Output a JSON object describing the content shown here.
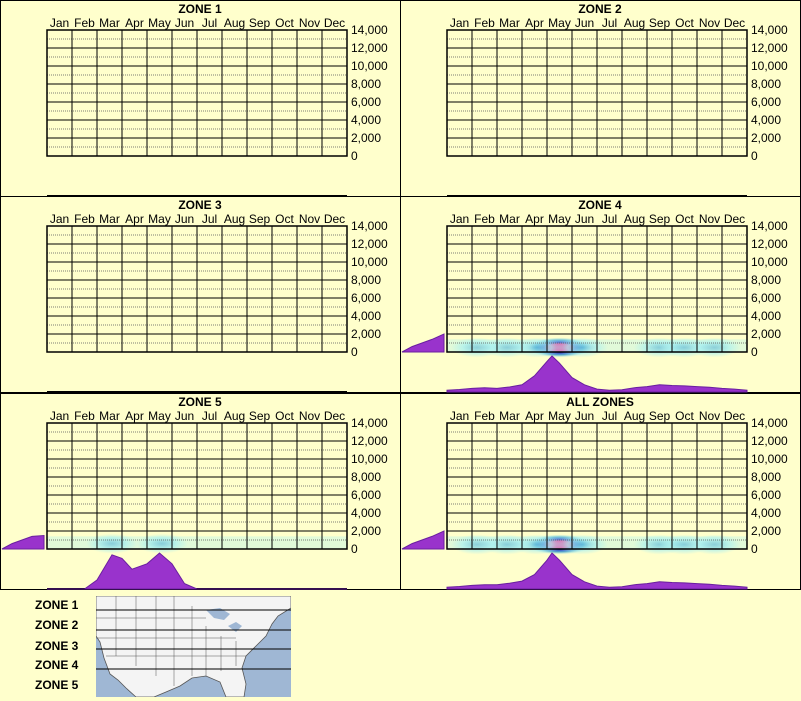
{
  "colors": {
    "background": "#ffffcc",
    "frame": "#000000",
    "grid_major": "#000000",
    "grid_minor": "#555555",
    "histogram_fill": "#9933cc",
    "histogram_stroke": "#6a1fa0",
    "heat_low": "#aaf0f0",
    "heat_mid": "#3399cc",
    "heat_high": "#3333cc",
    "heat_peak": "#ff1a8c",
    "map_water": "#9fb7d4",
    "map_land": "#f4f4f4",
    "map_border": "#555555"
  },
  "chart_data": [
    {
      "type": "heatmap",
      "title": "ZONE 1",
      "months": [
        "Jan",
        "Feb",
        "Mar",
        "Apr",
        "May",
        "Jun",
        "Jul",
        "Aug",
        "Sep",
        "Oct",
        "Nov",
        "Dec"
      ],
      "yticks": [
        "14,000",
        "12,000",
        "10,000",
        "8,000",
        "6,000",
        "4,000",
        "2,000",
        "0"
      ],
      "ylim": [
        0,
        14000
      ],
      "grid": true,
      "hotspots": [],
      "monthly_profile": null,
      "elevation_profile": null
    },
    {
      "type": "heatmap",
      "title": "ZONE 2",
      "months": [
        "Jan",
        "Feb",
        "Mar",
        "Apr",
        "May",
        "Jun",
        "Jul",
        "Aug",
        "Sep",
        "Oct",
        "Nov",
        "Dec"
      ],
      "yticks": [
        "14,000",
        "12,000",
        "10,000",
        "8,000",
        "6,000",
        "4,000",
        "2,000",
        "0"
      ],
      "ylim": [
        0,
        14000
      ],
      "grid": true,
      "hotspots": [],
      "monthly_profile": null,
      "elevation_profile": null
    },
    {
      "type": "heatmap",
      "title": "ZONE 3",
      "months": [
        "Jan",
        "Feb",
        "Mar",
        "Apr",
        "May",
        "Jun",
        "Jul",
        "Aug",
        "Sep",
        "Oct",
        "Nov",
        "Dec"
      ],
      "yticks": [
        "14,000",
        "12,000",
        "10,000",
        "8,000",
        "6,000",
        "4,000",
        "2,000",
        "0"
      ],
      "ylim": [
        0,
        14000
      ],
      "grid": true,
      "hotspots": [],
      "monthly_profile": null,
      "elevation_profile": null
    },
    {
      "type": "heatmap",
      "title": "ZONE 4",
      "months": [
        "Jan",
        "Feb",
        "Mar",
        "Apr",
        "May",
        "Jun",
        "Jul",
        "Aug",
        "Sep",
        "Oct",
        "Nov",
        "Dec"
      ],
      "yticks": [
        "14,000",
        "12,000",
        "10,000",
        "8,000",
        "6,000",
        "4,000",
        "2,000",
        "0"
      ],
      "ylim": [
        0,
        14000
      ],
      "grid": true,
      "hotspots": [
        {
          "month": 4.5,
          "elevation": 500,
          "intensity": 1.0
        },
        {
          "month": 3.6,
          "elevation": 500,
          "intensity": 0.45
        },
        {
          "month": 5.4,
          "elevation": 500,
          "intensity": 0.45
        },
        {
          "month": 2.4,
          "elevation": 500,
          "intensity": 0.25
        },
        {
          "month": 1.2,
          "elevation": 500,
          "intensity": 0.2
        },
        {
          "month": 8.5,
          "elevation": 500,
          "intensity": 0.3
        },
        {
          "month": 9.5,
          "elevation": 500,
          "intensity": 0.3
        },
        {
          "month": 10.7,
          "elevation": 500,
          "intensity": 0.22
        }
      ],
      "monthly_profile": [
        [
          0.0,
          0.05
        ],
        [
          0.5,
          0.07
        ],
        [
          1.0,
          0.1
        ],
        [
          1.5,
          0.12
        ],
        [
          2.0,
          0.1
        ],
        [
          2.5,
          0.14
        ],
        [
          3.0,
          0.2
        ],
        [
          3.5,
          0.45
        ],
        [
          4.0,
          0.85
        ],
        [
          4.2,
          1.0
        ],
        [
          4.5,
          0.8
        ],
        [
          5.0,
          0.4
        ],
        [
          5.5,
          0.2
        ],
        [
          6.0,
          0.08
        ],
        [
          6.5,
          0.05
        ],
        [
          7.0,
          0.06
        ],
        [
          7.5,
          0.12
        ],
        [
          8.0,
          0.15
        ],
        [
          8.5,
          0.2
        ],
        [
          9.0,
          0.18
        ],
        [
          9.5,
          0.17
        ],
        [
          10.0,
          0.15
        ],
        [
          10.5,
          0.13
        ],
        [
          11.0,
          0.1
        ],
        [
          11.5,
          0.08
        ],
        [
          12.0,
          0.05
        ]
      ],
      "elevation_profile": [
        [
          0,
          1.0
        ],
        [
          2000,
          0.3
        ],
        [
          2500,
          0.0
        ]
      ]
    },
    {
      "type": "heatmap",
      "title": "ZONE 5",
      "months": [
        "Jan",
        "Feb",
        "Mar",
        "Apr",
        "May",
        "Jun",
        "Jul",
        "Aug",
        "Sep",
        "Oct",
        "Nov",
        "Dec"
      ],
      "yticks": [
        "14,000",
        "12,000",
        "10,000",
        "8,000",
        "6,000",
        "4,000",
        "2,000",
        "0"
      ],
      "ylim": [
        0,
        14000
      ],
      "grid": true,
      "hotspots": [
        {
          "month": 2.6,
          "elevation": 600,
          "intensity": 0.28
        },
        {
          "month": 4.6,
          "elevation": 600,
          "intensity": 0.3
        }
      ],
      "monthly_profile": [
        [
          0.0,
          0.0
        ],
        [
          1.5,
          0.0
        ],
        [
          2.0,
          0.25
        ],
        [
          2.6,
          0.95
        ],
        [
          3.0,
          0.85
        ],
        [
          3.4,
          0.55
        ],
        [
          4.0,
          0.7
        ],
        [
          4.5,
          1.0
        ],
        [
          5.0,
          0.7
        ],
        [
          5.5,
          0.15
        ],
        [
          6.0,
          0.0
        ],
        [
          12.0,
          0.0
        ]
      ],
      "elevation_profile": [
        [
          0,
          1.0
        ],
        [
          1500,
          0.7
        ],
        [
          2500,
          0.35
        ],
        [
          3000,
          0.0
        ]
      ]
    },
    {
      "type": "heatmap",
      "title": "ALL ZONES",
      "months": [
        "Jan",
        "Feb",
        "Mar",
        "Apr",
        "May",
        "Jun",
        "Jul",
        "Aug",
        "Sep",
        "Oct",
        "Nov",
        "Dec"
      ],
      "yticks": [
        "14,000",
        "12,000",
        "10,000",
        "8,000",
        "6,000",
        "4,000",
        "2,000",
        "0"
      ],
      "ylim": [
        0,
        14000
      ],
      "grid": true,
      "hotspots": [
        {
          "month": 4.5,
          "elevation": 500,
          "intensity": 1.0
        },
        {
          "month": 3.6,
          "elevation": 500,
          "intensity": 0.45
        },
        {
          "month": 5.4,
          "elevation": 500,
          "intensity": 0.45
        },
        {
          "month": 2.4,
          "elevation": 500,
          "intensity": 0.3
        },
        {
          "month": 1.2,
          "elevation": 500,
          "intensity": 0.22
        },
        {
          "month": 8.5,
          "elevation": 500,
          "intensity": 0.3
        },
        {
          "month": 9.5,
          "elevation": 500,
          "intensity": 0.3
        },
        {
          "month": 10.7,
          "elevation": 500,
          "intensity": 0.22
        }
      ],
      "monthly_profile": [
        [
          0.0,
          0.05
        ],
        [
          0.5,
          0.07
        ],
        [
          1.0,
          0.1
        ],
        [
          1.5,
          0.12
        ],
        [
          2.0,
          0.12
        ],
        [
          2.5,
          0.16
        ],
        [
          3.0,
          0.22
        ],
        [
          3.5,
          0.4
        ],
        [
          4.0,
          0.8
        ],
        [
          4.2,
          1.0
        ],
        [
          4.5,
          0.8
        ],
        [
          5.0,
          0.4
        ],
        [
          5.5,
          0.2
        ],
        [
          6.0,
          0.08
        ],
        [
          6.5,
          0.05
        ],
        [
          7.0,
          0.06
        ],
        [
          7.5,
          0.12
        ],
        [
          8.0,
          0.15
        ],
        [
          8.5,
          0.2
        ],
        [
          9.0,
          0.18
        ],
        [
          9.5,
          0.17
        ],
        [
          10.0,
          0.15
        ],
        [
          10.5,
          0.13
        ],
        [
          11.0,
          0.1
        ],
        [
          11.5,
          0.08
        ],
        [
          12.0,
          0.05
        ]
      ],
      "elevation_profile": [
        [
          0,
          1.0
        ],
        [
          2000,
          0.3
        ],
        [
          2500,
          0.0
        ]
      ]
    }
  ],
  "legend": {
    "zones": [
      "ZONE 1",
      "ZONE 2",
      "ZONE 3",
      "ZONE 4",
      "ZONE 5"
    ]
  }
}
